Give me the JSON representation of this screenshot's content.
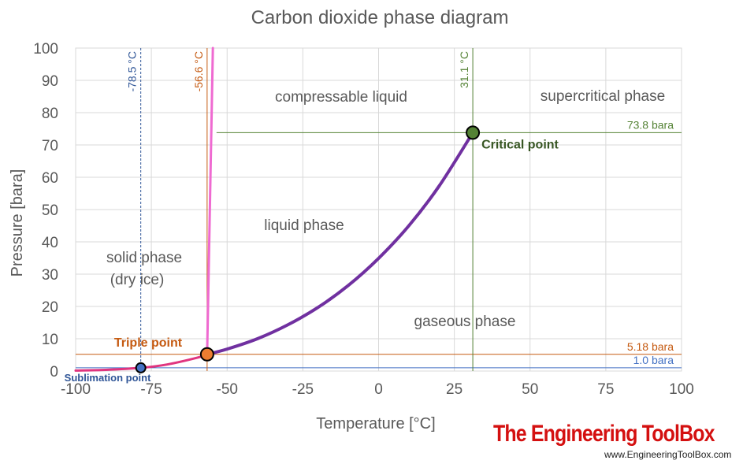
{
  "chart_data": {
    "type": "line",
    "title": "Carbon dioxide phase diagram",
    "xlabel": "Temperature [°C]",
    "ylabel": "Pressure [bara]",
    "xlim": [
      -100,
      100
    ],
    "ylim": [
      0,
      100
    ],
    "grid": true,
    "xticks": [
      -100,
      -75,
      -50,
      -25,
      0,
      25,
      50,
      75,
      100
    ],
    "yticks": [
      0,
      10,
      20,
      30,
      40,
      50,
      60,
      70,
      80,
      90,
      100
    ],
    "series": [
      {
        "color": "#7030a0",
        "points": [
          [
            -56.6,
            5.18
          ],
          [
            -50,
            6.8
          ],
          [
            -40,
            10.0
          ],
          [
            -30,
            14.3
          ],
          [
            -20,
            19.7
          ],
          [
            -10,
            26.5
          ],
          [
            0,
            34.9
          ],
          [
            10,
            45.0
          ],
          [
            20,
            57.3
          ],
          [
            31.1,
            73.8
          ]
        ]
      },
      {
        "color": "#e0357f",
        "points": [
          [
            -100,
            0.14
          ],
          [
            -90,
            0.37
          ],
          [
            -78.5,
            1.0
          ],
          [
            -70,
            2.0
          ],
          [
            -60,
            4.1
          ],
          [
            -56.6,
            5.18
          ]
        ]
      },
      {
        "color": "#ef6ad1",
        "points": [
          [
            -56.6,
            5.18
          ],
          [
            -54.7,
            100
          ]
        ]
      }
    ],
    "reference_lines": [
      {
        "axis": "y",
        "value": 73.8,
        "label": "73.8 bara",
        "color": "#548235"
      },
      {
        "axis": "y",
        "value": 5.18,
        "label": "5.18 bara",
        "color": "#c55a11"
      },
      {
        "axis": "y",
        "value": 1.0,
        "label": "1.0 bara",
        "color": "#4472c4"
      },
      {
        "axis": "x",
        "value": -78.5,
        "label": "-78.5 °C",
        "color": "#2f5597"
      },
      {
        "axis": "x",
        "value": -56.6,
        "label": "-56.6 °C",
        "color": "#c55a11"
      },
      {
        "axis": "x",
        "value": 31.1,
        "label": "31.1 °C",
        "color": "#548235"
      }
    ],
    "points": [
      {
        "x": -78.5,
        "y": 1.0,
        "label": "Sublimation point",
        "fill": "#4472c4",
        "text_color": "#2f5597"
      },
      {
        "x": -56.6,
        "y": 5.18,
        "label": "Triple point",
        "fill": "#ed7d31",
        "text_color": "#c55a11"
      },
      {
        "x": 31.1,
        "y": 73.8,
        "label": "Critical point",
        "fill": "#548235",
        "text_color": "#375623"
      }
    ],
    "annotations": [
      "compressable liquid",
      "supercritical phase",
      "liquid phase",
      "solid phase",
      "(dry ice)",
      "gaseous phase"
    ]
  },
  "branding": {
    "name": "The Engineering ToolBox",
    "url": "www.EngineeringToolBox.com"
  }
}
